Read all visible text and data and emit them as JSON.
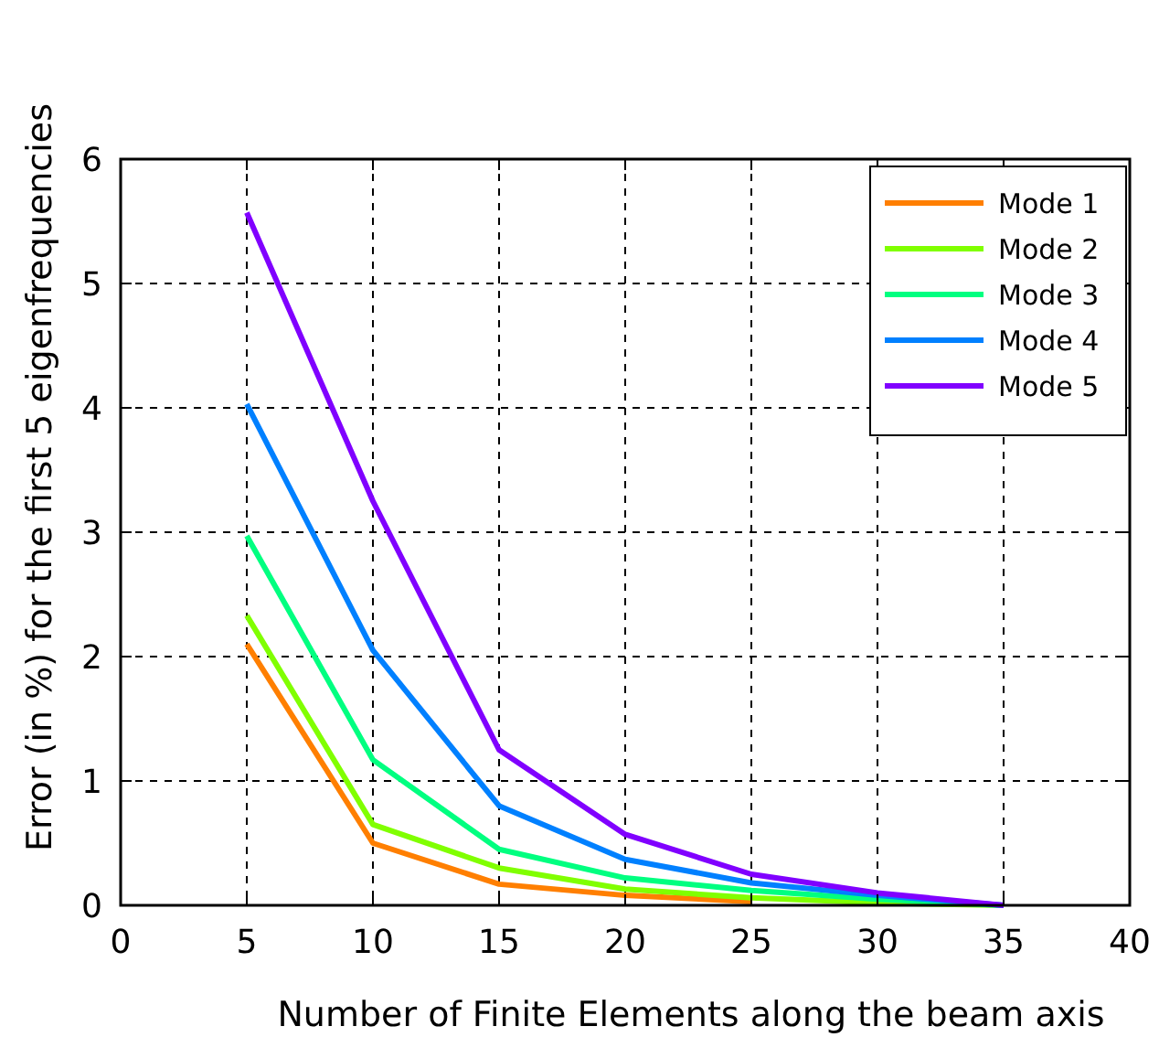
{
  "chart_data": {
    "type": "line",
    "xlabel": "Number of Finite Elements along the beam axis",
    "ylabel": "Error (in %) for the first 5 eigenfrequencies",
    "x": [
      5,
      10,
      15,
      20,
      25,
      30,
      35
    ],
    "series": [
      {
        "name": "Mode 1",
        "color": "#ff7f00",
        "values": [
          2.1,
          0.5,
          0.17,
          0.08,
          0.03,
          null,
          null
        ]
      },
      {
        "name": "Mode 2",
        "color": "#80ff00",
        "values": [
          2.33,
          0.65,
          0.3,
          0.13,
          0.06,
          0.02,
          0
        ]
      },
      {
        "name": "Mode 3",
        "color": "#00ff80",
        "values": [
          2.97,
          1.17,
          0.45,
          0.22,
          0.12,
          0.05,
          0
        ]
      },
      {
        "name": "Mode 4",
        "color": "#0080ff",
        "values": [
          4.03,
          2.05,
          0.8,
          0.37,
          0.18,
          0.08,
          0
        ]
      },
      {
        "name": "Mode 5",
        "color": "#8000ff",
        "values": [
          5.57,
          3.25,
          1.25,
          0.57,
          0.25,
          0.1,
          0
        ]
      }
    ],
    "xlim": [
      0,
      40
    ],
    "xticks": [
      0,
      5,
      10,
      15,
      20,
      25,
      30,
      35,
      40
    ],
    "ylim": [
      0,
      6
    ],
    "yticks": [
      0,
      1,
      2,
      3,
      4,
      5,
      6
    ],
    "grid": true,
    "legend": "top right",
    "marker": "none",
    "line_style": "solid"
  }
}
